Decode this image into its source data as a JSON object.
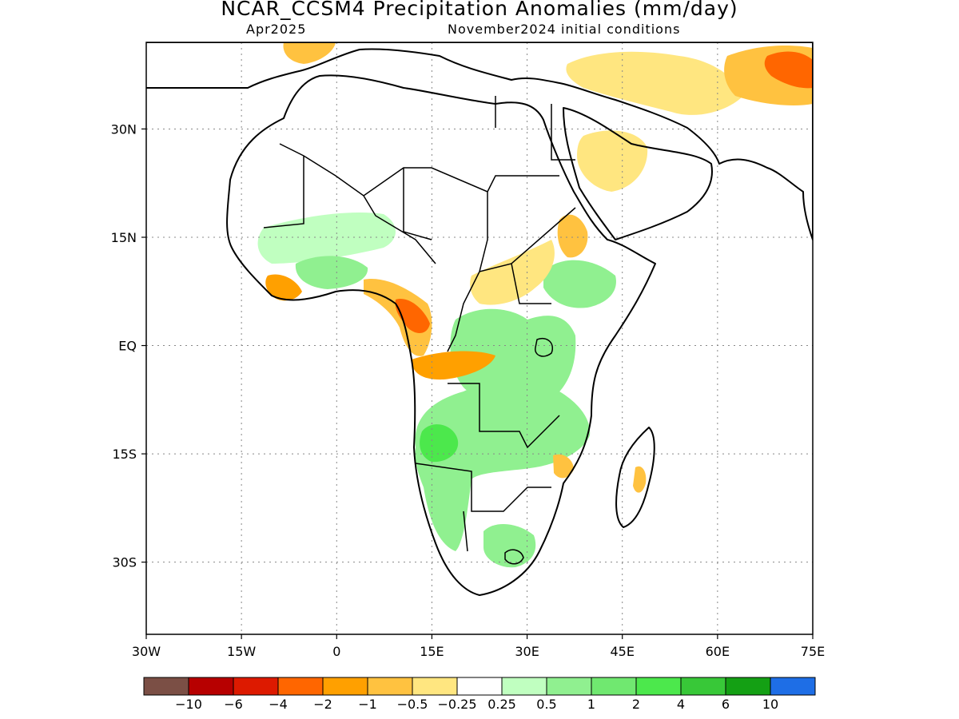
{
  "title": "NCAR_CCSM4 Precipitation Anomalies (mm/day)",
  "subtitle_left": "Apr2025",
  "subtitle_right": "November2024 initial conditions",
  "map": {
    "lon_range": [
      -30,
      75
    ],
    "lat_range": [
      -40,
      42
    ],
    "lon_ticks": [
      {
        "value": -30,
        "label": "30W"
      },
      {
        "value": -15,
        "label": "15W"
      },
      {
        "value": 0,
        "label": "0"
      },
      {
        "value": 15,
        "label": "15E"
      },
      {
        "value": 30,
        "label": "30E"
      },
      {
        "value": 45,
        "label": "45E"
      },
      {
        "value": 60,
        "label": "60E"
      },
      {
        "value": 75,
        "label": "75E"
      }
    ],
    "lat_ticks": [
      {
        "value": 30,
        "label": "30N"
      },
      {
        "value": 15,
        "label": "15N"
      },
      {
        "value": 0,
        "label": "EQ"
      },
      {
        "value": -15,
        "label": "15S"
      },
      {
        "value": -30,
        "label": "30S"
      }
    ],
    "grid": true
  },
  "colorbar": {
    "colors": [
      "#7b4f45",
      "#b70000",
      "#dd1a00",
      "#ff6600",
      "#ffa000",
      "#ffc240",
      "#ffe680",
      "#ffffff",
      "#c0ffc0",
      "#90f090",
      "#70e870",
      "#4ce84c",
      "#38c838",
      "#14a014",
      "#1e6ee6"
    ],
    "labels": [
      "−10",
      "−6",
      "−4",
      "−2",
      "−1",
      "−0.5",
      "−0.25",
      "0.25",
      "0.5",
      "1",
      "2",
      "4",
      "6",
      "10"
    ]
  }
}
